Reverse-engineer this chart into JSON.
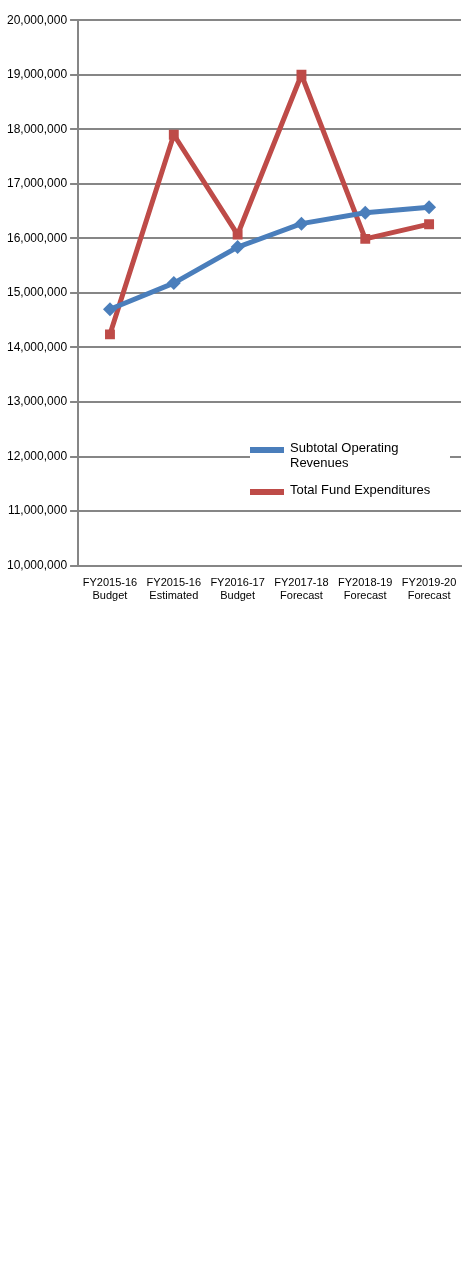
{
  "chart_data": {
    "type": "line",
    "categories": [
      "FY2015-16 Budget",
      "FY2015-16 Estimated",
      "FY2016-17 Budget",
      "FY2017-18 Forecast",
      "FY2018-19 Forecast",
      "FY2019-20 Forecast"
    ],
    "series": [
      {
        "name": "Subtotal Operating Revenues",
        "color": "#4a7ebb",
        "marker": "diamond",
        "values": [
          14700000,
          15180000,
          15840000,
          16270000,
          16470000,
          16570000
        ]
      },
      {
        "name": "Total Fund Expenditures",
        "color": "#be4b48",
        "marker": "square",
        "values": [
          14240000,
          17900000,
          16070000,
          19000000,
          15990000,
          16260000
        ]
      }
    ],
    "ylim": [
      10000000,
      20000000
    ],
    "yticks": [
      {
        "value": 10000000,
        "label": "10,000,000"
      },
      {
        "value": 11000000,
        "label": "11,000,000"
      },
      {
        "value": 12000000,
        "label": "12,000,000"
      },
      {
        "value": 13000000,
        "label": "13,000,000"
      },
      {
        "value": 14000000,
        "label": "14,000,000"
      },
      {
        "value": 15000000,
        "label": "15,000,000"
      },
      {
        "value": 16000000,
        "label": "16,000,000"
      },
      {
        "value": 17000000,
        "label": "17,000,000"
      },
      {
        "value": 18000000,
        "label": "18,000,000"
      },
      {
        "value": 19000000,
        "label": "19,000,000"
      },
      {
        "value": 20000000,
        "label": "20,000,000"
      }
    ],
    "grid": "y",
    "legend": "bottom right"
  }
}
